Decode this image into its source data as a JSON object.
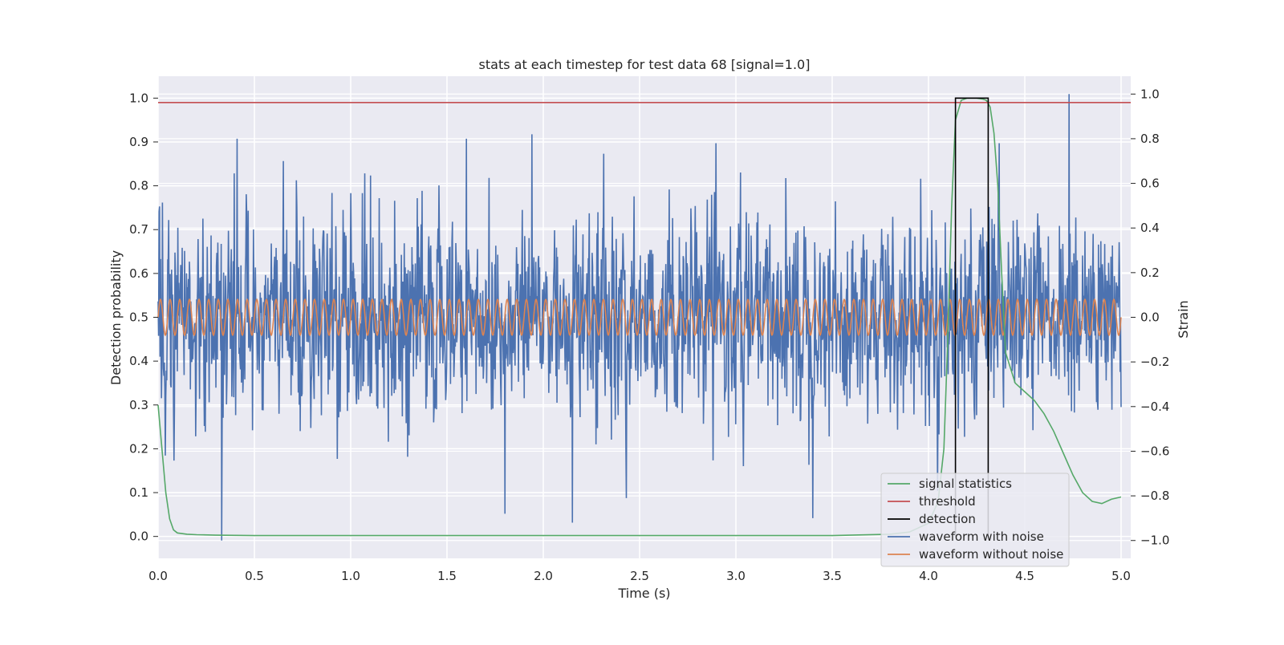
{
  "chart_data": {
    "type": "line",
    "title": "stats at each timestep for test data 68 [signal=1.0]",
    "xlabel": "Time (s)",
    "ylabel_left": "Detection probability",
    "ylabel_right": "Strain",
    "xlim": [
      0.0,
      5.05
    ],
    "ylim_left": [
      -0.05,
      1.05
    ],
    "ylim_right": [
      -1.08,
      1.08
    ],
    "grid": true,
    "legend_placement": "lower-right",
    "x_ticks": [
      "0.0",
      "0.5",
      "1.0",
      "1.5",
      "2.0",
      "2.5",
      "3.0",
      "3.5",
      "4.0",
      "4.5",
      "5.0"
    ],
    "x_tick_values": [
      0.0,
      0.5,
      1.0,
      1.5,
      2.0,
      2.5,
      3.0,
      3.5,
      4.0,
      4.5,
      5.0
    ],
    "left_ticks": [
      "0.0",
      "0.1",
      "0.2",
      "0.3",
      "0.4",
      "0.5",
      "0.6",
      "0.7",
      "0.8",
      "0.9",
      "1.0"
    ],
    "left_tick_values": [
      0.0,
      0.1,
      0.2,
      0.3,
      0.4,
      0.5,
      0.6,
      0.7,
      0.8,
      0.9,
      1.0
    ],
    "right_ticks": [
      "−1.0",
      "−0.8",
      "−0.6",
      "−0.4",
      "−0.2",
      "0.0",
      "0.2",
      "0.4",
      "0.6",
      "0.8",
      "1.0"
    ],
    "right_tick_values": [
      -1.0,
      -0.8,
      -0.6,
      -0.4,
      -0.2,
      0.0,
      0.2,
      0.4,
      0.6,
      0.8,
      1.0
    ],
    "series": [
      {
        "name": "signal statistics",
        "axis": "left",
        "color": "#55a868",
        "x": [
          0.0,
          0.02,
          0.04,
          0.06,
          0.08,
          0.1,
          0.15,
          0.2,
          0.3,
          0.5,
          1.0,
          1.5,
          2.0,
          2.5,
          3.0,
          3.5,
          3.8,
          3.9,
          4.0,
          4.05,
          4.08,
          4.1,
          4.12,
          4.14,
          4.17,
          4.2,
          4.25,
          4.28,
          4.3,
          4.32,
          4.34,
          4.36,
          4.38,
          4.4,
          4.45,
          4.5,
          4.55,
          4.6,
          4.65,
          4.7,
          4.75,
          4.8,
          4.85,
          4.9,
          4.95,
          5.0
        ],
        "y": [
          0.3,
          0.2,
          0.1,
          0.04,
          0.015,
          0.008,
          0.005,
          0.004,
          0.003,
          0.002,
          0.002,
          0.002,
          0.002,
          0.002,
          0.002,
          0.002,
          0.005,
          0.01,
          0.03,
          0.08,
          0.2,
          0.45,
          0.75,
          0.95,
          0.995,
          1.0,
          1.0,
          0.998,
          0.995,
          0.98,
          0.92,
          0.8,
          0.6,
          0.42,
          0.35,
          0.33,
          0.31,
          0.28,
          0.24,
          0.19,
          0.14,
          0.1,
          0.08,
          0.075,
          0.085,
          0.09
        ]
      },
      {
        "name": "threshold",
        "axis": "left",
        "color": "#c44e52",
        "x": [
          0.0,
          5.05
        ],
        "y": [
          0.99,
          0.99
        ]
      },
      {
        "name": "detection",
        "axis": "left",
        "color": "#000000",
        "x": [
          4.14,
          4.14,
          4.31,
          4.31
        ],
        "y": [
          0.0,
          1.0,
          1.0,
          0.0
        ]
      },
      {
        "name": "waveform with noise",
        "axis": "right",
        "color": "#4c72b0",
        "x_range": [
          0.0,
          5.0
        ],
        "n_points": 2000,
        "noise_std": 0.22,
        "peaks": [
          {
            "x": 0.33,
            "y": -1.0
          },
          {
            "x": 0.41,
            "y": 0.8
          },
          {
            "x": 1.94,
            "y": 0.82
          },
          {
            "x": 2.15,
            "y": -0.92
          },
          {
            "x": 4.73,
            "y": 1.0
          },
          {
            "x": 3.4,
            "y": -0.9
          },
          {
            "x": 1.8,
            "y": -0.88
          },
          {
            "x": 2.43,
            "y": -0.81
          },
          {
            "x": 0.65,
            "y": 0.7
          },
          {
            "x": 1.6,
            "y": 0.8
          }
        ]
      },
      {
        "name": "waveform without noise",
        "axis": "right",
        "color": "#dd8452",
        "x_range": [
          0.0,
          5.0
        ],
        "amplitude": 0.08,
        "frequency_hz": 20
      }
    ]
  }
}
